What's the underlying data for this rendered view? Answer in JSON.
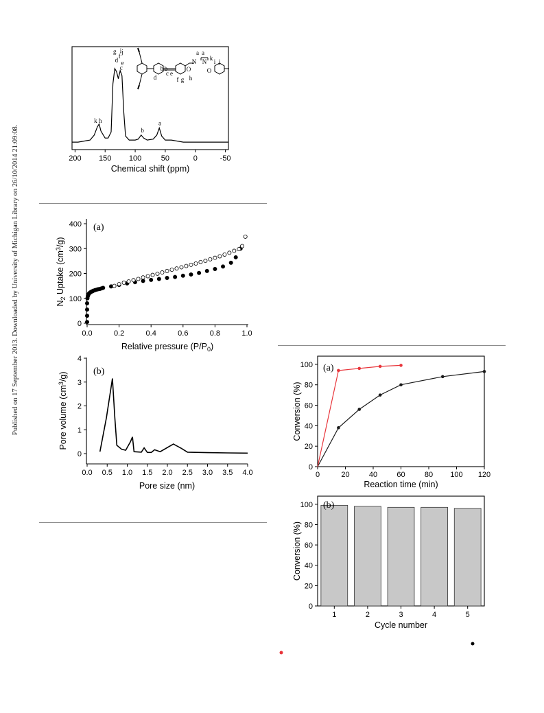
{
  "side_note": "Published on 17 September 2013. Downloaded by University of Michigan Library on 26/10/2014 21:09:08.",
  "chart_data": [
    {
      "id": "nmr",
      "type": "line",
      "title": "",
      "xlabel": "Chemical shift (ppm)",
      "ylabel": "",
      "xlim": [
        205,
        -55
      ],
      "x_ticks": [
        200,
        150,
        100,
        50,
        0,
        -50
      ],
      "inset": "molecular structure",
      "structure_labels": [
        "b",
        "b",
        "c",
        "d",
        "e",
        "f",
        "g",
        "h",
        "a",
        "a",
        "N",
        "N",
        "k",
        "i",
        "j",
        "O",
        "O"
      ],
      "peak_labels": [
        {
          "ppm": 162,
          "text": "k h"
        },
        {
          "ppm": 134,
          "text": "g"
        },
        {
          "ppm": 131,
          "text": "d"
        },
        {
          "ppm": 126,
          "text": "f"
        },
        {
          "ppm": 124,
          "text": "i"
        },
        {
          "ppm": 121,
          "text": "e"
        },
        {
          "ppm": 123,
          "text": "c"
        },
        {
          "ppm": 121,
          "text": "j"
        },
        {
          "ppm": 88,
          "text": "b"
        },
        {
          "ppm": 59,
          "text": "a"
        }
      ],
      "spectrum": [
        [
          205,
          0.02
        ],
        [
          195,
          0.02
        ],
        [
          185,
          0.03
        ],
        [
          175,
          0.04
        ],
        [
          168,
          0.09
        ],
        [
          163,
          0.17
        ],
        [
          160,
          0.2
        ],
        [
          157,
          0.13
        ],
        [
          150,
          0.06
        ],
        [
          145,
          0.06
        ],
        [
          140,
          0.12
        ],
        [
          137,
          0.6
        ],
        [
          134,
          0.75
        ],
        [
          131,
          0.72
        ],
        [
          128,
          0.65
        ],
        [
          125,
          0.73
        ],
        [
          122,
          0.68
        ],
        [
          119,
          0.32
        ],
        [
          116,
          0.08
        ],
        [
          110,
          0.04
        ],
        [
          100,
          0.04
        ],
        [
          95,
          0.05
        ],
        [
          90,
          0.09
        ],
        [
          86,
          0.06
        ],
        [
          80,
          0.04
        ],
        [
          70,
          0.05
        ],
        [
          64,
          0.09
        ],
        [
          60,
          0.16
        ],
        [
          56,
          0.08
        ],
        [
          50,
          0.04
        ],
        [
          40,
          0.04
        ],
        [
          30,
          0.03
        ],
        [
          20,
          0.02
        ],
        [
          10,
          0.02
        ],
        [
          0,
          0.02
        ],
        [
          -10,
          0.02
        ],
        [
          -20,
          0.02
        ],
        [
          -30,
          0.02
        ],
        [
          -40,
          0.02
        ],
        [
          -55,
          0.02
        ]
      ]
    },
    {
      "id": "n2",
      "type": "scatter",
      "panel_label": "(a)",
      "xlabel": "Relative pressure (P/P",
      "xlabel_sub": "0",
      "ylabel_pre": "N",
      "ylabel_sub": "2",
      "ylabel_mid": " Uptake (cm",
      "ylabel_sup": "3",
      "ylabel_post": "/g)",
      "xlim": [
        0,
        1.0
      ],
      "ylim": [
        0,
        420
      ],
      "x_ticks": [
        "0.0",
        "0.2",
        "0.4",
        "0.6",
        "0.8",
        "1.0"
      ],
      "y_ticks": [
        0,
        100,
        200,
        300,
        400
      ],
      "series": [
        {
          "marker": "filled",
          "x": [
            0.0,
            0.0,
            0.0,
            0.0,
            0.002,
            0.004,
            0.006,
            0.008,
            0.01,
            0.013,
            0.016,
            0.02,
            0.025,
            0.03,
            0.035,
            0.04,
            0.05,
            0.06,
            0.07,
            0.08,
            0.09,
            0.1,
            0.15,
            0.2,
            0.25,
            0.3,
            0.35,
            0.4,
            0.45,
            0.5,
            0.55,
            0.6,
            0.65,
            0.7,
            0.75,
            0.8,
            0.85,
            0.9,
            0.93,
            0.96
          ],
          "y": [
            5,
            30,
            55,
            80,
            100,
            108,
            112,
            115,
            118,
            120,
            122,
            124,
            126,
            128,
            129,
            131,
            133,
            135,
            137,
            138,
            140,
            142,
            148,
            154,
            160,
            165,
            170,
            174,
            178,
            182,
            186,
            191,
            196,
            202,
            210,
            218,
            228,
            243,
            265,
            300
          ]
        },
        {
          "marker": "open",
          "x": [
            0.17,
            0.2,
            0.23,
            0.26,
            0.29,
            0.32,
            0.35,
            0.38,
            0.41,
            0.44,
            0.47,
            0.5,
            0.53,
            0.56,
            0.59,
            0.62,
            0.65,
            0.68,
            0.71,
            0.74,
            0.77,
            0.8,
            0.83,
            0.86,
            0.89,
            0.92,
            0.95,
            0.97,
            0.99
          ],
          "y": [
            150,
            157,
            163,
            168,
            173,
            178,
            184,
            189,
            194,
            199,
            204,
            210,
            215,
            220,
            225,
            230,
            235,
            240,
            246,
            251,
            257,
            263,
            269,
            276,
            283,
            291,
            298,
            310,
            348
          ]
        }
      ]
    },
    {
      "id": "pore",
      "type": "line",
      "panel_label": "(b)",
      "xlabel": "Pore size (nm)",
      "ylabel_pre": "Pore volume (cm",
      "ylabel_sup": "3",
      "ylabel_post": "/g)",
      "xlim": [
        0,
        4.0
      ],
      "ylim": [
        -0.3,
        4
      ],
      "x_ticks": [
        "0.0",
        "0.5",
        "1.0",
        "1.5",
        "2.0",
        "2.5",
        "3.0",
        "3.5",
        "4.0"
      ],
      "y_ticks": [
        0,
        1,
        2,
        3,
        4
      ],
      "x": [
        0.32,
        0.48,
        0.63,
        0.69,
        0.74,
        0.86,
        0.96,
        1.08,
        1.13,
        1.17,
        1.35,
        1.42,
        1.5,
        1.6,
        1.68,
        1.82,
        2.15,
        2.35,
        2.5,
        3.0,
        3.5,
        4.0
      ],
      "y": [
        0.08,
        1.5,
        3.15,
        1.5,
        0.35,
        0.18,
        0.14,
        0.5,
        0.7,
        0.08,
        0.06,
        0.24,
        0.05,
        0.05,
        0.16,
        0.08,
        0.4,
        0.22,
        0.06,
        0.04,
        0.03,
        0.02
      ]
    },
    {
      "id": "conv",
      "type": "line",
      "panel_label": "(a)",
      "xlabel": "Reaction time (min)",
      "ylabel": "Conversion (%)",
      "xlim": [
        0,
        120
      ],
      "ylim": [
        0,
        108
      ],
      "x_ticks": [
        0,
        20,
        40,
        60,
        80,
        100,
        120
      ],
      "y_ticks": [
        0,
        20,
        40,
        60,
        80,
        100
      ],
      "series": [
        {
          "color": "#1a1a1a",
          "x": [
            0,
            15,
            30,
            45,
            60,
            90,
            120
          ],
          "y": [
            0,
            38,
            56,
            70,
            80,
            88,
            93
          ]
        },
        {
          "color": "#e8343a",
          "x": [
            0,
            15,
            30,
            45,
            60
          ],
          "y": [
            0,
            94,
            96,
            98,
            99
          ]
        }
      ]
    },
    {
      "id": "cycle",
      "type": "bar",
      "panel_label": "(b)",
      "xlabel": "Cycle number",
      "ylabel": "Conversion (%)",
      "ylim": [
        0,
        108
      ],
      "y_ticks": [
        0,
        20,
        40,
        60,
        80,
        100
      ],
      "categories": [
        "1",
        "2",
        "3",
        "4",
        "5"
      ],
      "values": [
        99,
        98,
        97,
        97,
        96
      ],
      "bar_color": "#c8c8c8"
    }
  ]
}
